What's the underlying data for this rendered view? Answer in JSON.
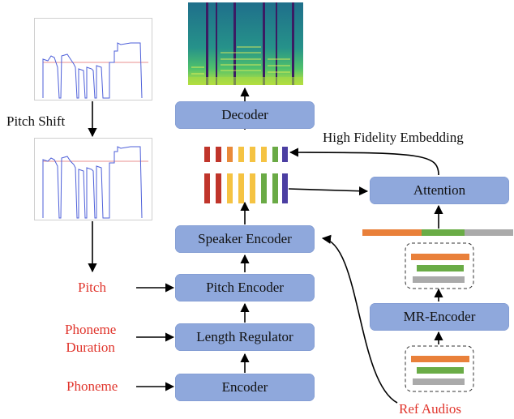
{
  "modules": {
    "decoder": "Decoder",
    "speaker_encoder": "Speaker Encoder",
    "pitch_encoder": "Pitch Encoder",
    "length_regulator": "Length Regulator",
    "encoder": "Encoder",
    "attention": "Attention",
    "mr_encoder": "MR-Encoder"
  },
  "labels": {
    "pitch_shift": "Pitch Shift",
    "high_fidelity_embedding": "High Fidelity Embedding"
  },
  "inputs": {
    "pitch": "Pitch",
    "phoneme_duration_line1": "Phoneme",
    "phoneme_duration_line2": "Duration",
    "phoneme": "Phoneme",
    "ref_audios": "Ref Audios"
  },
  "colors": {
    "box": "#8fa8dc",
    "input_text": "#e0342b",
    "emb_red": "#c0352b",
    "emb_orange": "#e98a3a",
    "emb_yellow": "#f5c343",
    "emb_green": "#6aaa45",
    "emb_purple": "#4b3ea2",
    "bar_orange": "#e9803a",
    "bar_green": "#6aac46",
    "bar_gray": "#aaaaaa"
  },
  "embedding_columns": [
    "red",
    "red",
    "orange",
    "yellow",
    "yellow",
    "yellow",
    "green",
    "green",
    "purple"
  ]
}
